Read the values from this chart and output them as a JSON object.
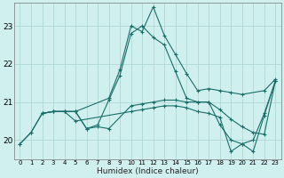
{
  "xlabel": "Humidex (Indice chaleur)",
  "bg_color": "#cff0ee",
  "grid_color": "#b0d8d5",
  "line_color": "#1a6e6a",
  "xlim": [
    -0.5,
    23.5
  ],
  "ylim": [
    19.5,
    23.6
  ],
  "yticks": [
    20,
    21,
    22,
    23
  ],
  "xticks": [
    0,
    1,
    2,
    3,
    4,
    5,
    6,
    7,
    8,
    9,
    10,
    11,
    12,
    13,
    14,
    15,
    16,
    17,
    18,
    19,
    20,
    21,
    22,
    23
  ],
  "lines": [
    {
      "x": [
        0,
        1,
        2,
        3,
        4,
        5,
        8,
        9,
        10,
        11,
        12,
        13,
        14,
        15,
        16,
        17,
        18,
        19,
        20,
        22,
        23
      ],
      "y": [
        19.9,
        20.2,
        20.7,
        20.75,
        20.75,
        20.75,
        21.1,
        21.85,
        23.0,
        22.85,
        23.5,
        22.75,
        22.25,
        21.75,
        21.3,
        21.35,
        21.3,
        21.25,
        21.2,
        21.3,
        21.6
      ]
    },
    {
      "x": [
        2,
        3,
        4,
        5,
        6,
        7,
        8,
        9,
        10,
        11,
        12,
        13,
        14,
        15,
        16,
        17,
        18,
        19,
        20,
        21,
        22,
        23
      ],
      "y": [
        20.7,
        20.75,
        20.75,
        20.75,
        20.3,
        20.4,
        21.05,
        21.7,
        22.8,
        23.0,
        22.7,
        22.5,
        21.8,
        21.1,
        21.0,
        21.0,
        20.4,
        20.0,
        19.9,
        19.7,
        20.65,
        21.55
      ]
    },
    {
      "x": [
        2,
        3,
        4,
        5,
        6,
        7,
        8,
        10,
        11,
        12,
        13,
        14,
        15,
        16,
        17,
        18,
        19,
        20,
        21,
        22,
        23
      ],
      "y": [
        20.7,
        20.75,
        20.75,
        20.75,
        20.3,
        20.35,
        20.3,
        20.9,
        20.95,
        21.0,
        21.05,
        21.05,
        21.0,
        21.0,
        21.0,
        20.8,
        20.55,
        20.35,
        20.2,
        20.15,
        21.55
      ]
    },
    {
      "x": [
        0,
        1,
        2,
        3,
        4,
        5,
        10,
        11,
        12,
        13,
        14,
        15,
        16,
        17,
        18,
        19,
        20,
        21,
        22,
        23
      ],
      "y": [
        19.9,
        20.2,
        20.7,
        20.75,
        20.75,
        20.5,
        20.75,
        20.8,
        20.85,
        20.9,
        20.9,
        20.85,
        20.75,
        20.7,
        20.6,
        19.7,
        19.9,
        20.0,
        20.7,
        21.55
      ]
    }
  ]
}
